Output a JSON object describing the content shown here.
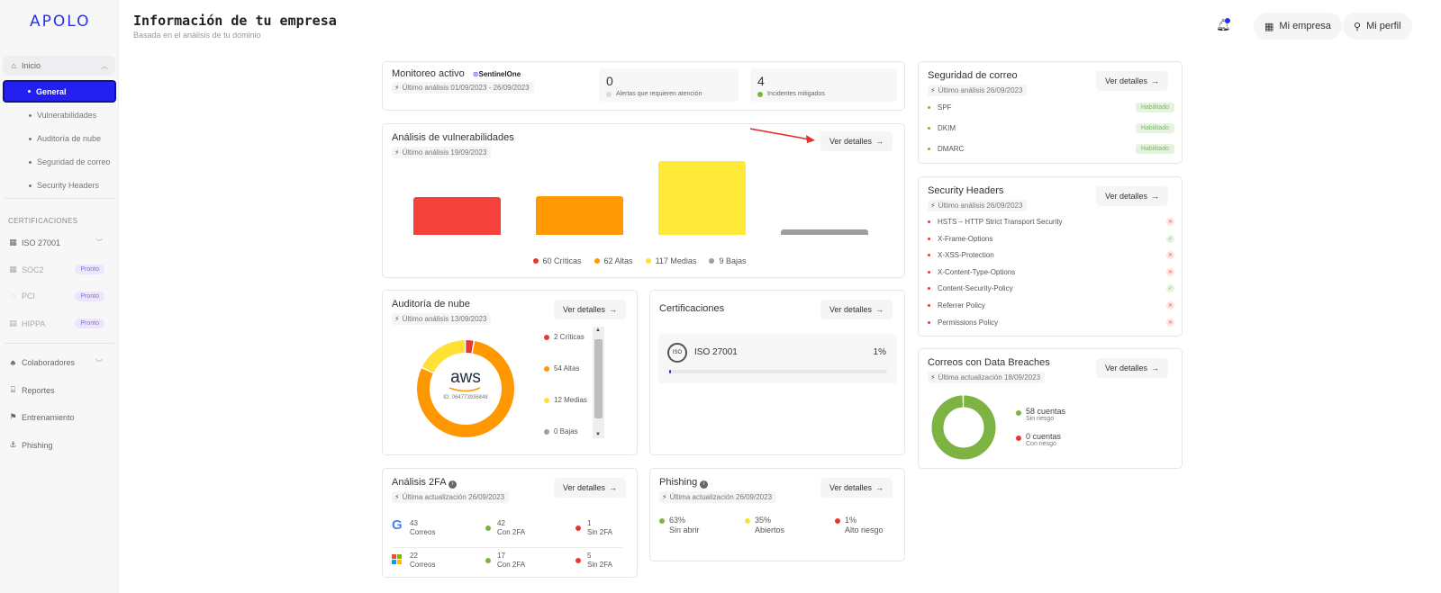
{
  "app": {
    "logo": "APOLO"
  },
  "sidebar": {
    "home": "Inicio",
    "general": "General",
    "sub_items": [
      "Vulnerabilidades",
      "Auditoría de nube",
      "Seguridad de correo",
      "Security Headers"
    ],
    "cert_section": "CERTIFICACIONES",
    "certs": [
      {
        "label": "ISO 27001",
        "badge": ""
      },
      {
        "label": "SOC2",
        "badge": "Pronto"
      },
      {
        "label": "PCI",
        "badge": "Pronto"
      },
      {
        "label": "HIPPA",
        "badge": "Pronto"
      }
    ],
    "bottom": [
      "Colaboradores",
      "Reportes",
      "Entrenamiento",
      "Phishing"
    ]
  },
  "header": {
    "title": "Información de tu empresa",
    "subtitle": "Basada en el análisis de tu dominio",
    "company_btn": "Mi empresa",
    "profile_btn": "Mi perfil"
  },
  "common": {
    "details": "Ver detalles"
  },
  "monitoring": {
    "title": "Monitoreo activo",
    "provider": "SentinelOne",
    "meta": "Último análisis 01/09/2023 - 26/09/2023",
    "alerts_value": "0",
    "alerts_label": "Alertas que requieren atención",
    "mitigated_value": "4",
    "mitigated_label": "Incidentes mitigados"
  },
  "vulns": {
    "title": "Análisis de vulnerabilidades",
    "meta": "Último análisis 19/09/2023",
    "legend": [
      "60 Críticas",
      "62 Altas",
      "117 Medias",
      "9 Bajas"
    ]
  },
  "chart_data": {
    "type": "bar",
    "categories": [
      "Críticas",
      "Altas",
      "Medias",
      "Bajas"
    ],
    "values": [
      60,
      62,
      117,
      9
    ],
    "colors": [
      "#f5413b",
      "#ff9a05",
      "#ffea3a",
      "#9e9e9e"
    ],
    "title": "",
    "xlabel": "",
    "ylabel": "",
    "grid": false,
    "legend": "bottom"
  },
  "cloud": {
    "title": "Auditoría de nube",
    "meta": "Último análisis 13/09/2023",
    "brand": "aws",
    "account_id": "ID: 064773936848",
    "legend": [
      "2 Críticas",
      "54 Altas",
      "12 Medias",
      "0 Bajas"
    ],
    "donut": {
      "criticas": 2,
      "altas": 54,
      "medias": 12,
      "bajas": 0
    }
  },
  "certifications": {
    "title": "Certificaciones",
    "item_label": "ISO 27001",
    "item_value": "1%",
    "progress": 1
  },
  "mail": {
    "title": "Seguridad de correo",
    "meta": "Último análisis 26/09/2023",
    "rows": [
      {
        "label": "SPF",
        "status": "Habilitado"
      },
      {
        "label": "DKIM",
        "status": "Habilitado"
      },
      {
        "label": "DMARC",
        "status": "Habilitado"
      }
    ]
  },
  "headers": {
    "title": "Security Headers",
    "meta": "Último análisis 26/09/2023",
    "rows": [
      {
        "label": "HSTS – HTTP Strict Transport Security",
        "ok": false
      },
      {
        "label": "X-Frame-Options",
        "ok": true
      },
      {
        "label": "X-XSS-Protection",
        "ok": false
      },
      {
        "label": "X-Content-Type-Options",
        "ok": false
      },
      {
        "label": "Content-Security-Policy",
        "ok": true
      },
      {
        "label": "Referrer Policy",
        "ok": false
      },
      {
        "label": "Permissions Policy",
        "ok": false
      }
    ]
  },
  "breaches": {
    "title": "Correos con Data Breaches",
    "meta": "Última actualización 18/09/2023",
    "safe_value": "58 cuentas",
    "safe_label": "Sin riesgo",
    "risk_value": "0 cuentas",
    "risk_label": "Con riesgo",
    "donut": {
      "safe": 58,
      "risk": 0
    }
  },
  "twofa": {
    "title": "Análisis 2FA",
    "meta": "Última actualización 26/09/2023",
    "rows": [
      {
        "provider": "google",
        "mails": "43",
        "with2fa": "42",
        "without2fa": "1"
      },
      {
        "provider": "microsoft",
        "mails": "22",
        "with2fa": "17",
        "without2fa": "5"
      }
    ],
    "mails_label": "Correos",
    "with_label": "Con 2FA",
    "without_label": "Sin 2FA"
  },
  "phishing": {
    "title": "Phishing",
    "meta": "Última actualización 26/09/2023",
    "items": [
      {
        "value": "63%",
        "label": "Sin abrir",
        "color": "#7cb342"
      },
      {
        "value": "35%",
        "label": "Abiertos",
        "color": "#ffe135"
      },
      {
        "value": "1%",
        "label": "Alto riesgo",
        "color": "#e53935"
      }
    ]
  }
}
